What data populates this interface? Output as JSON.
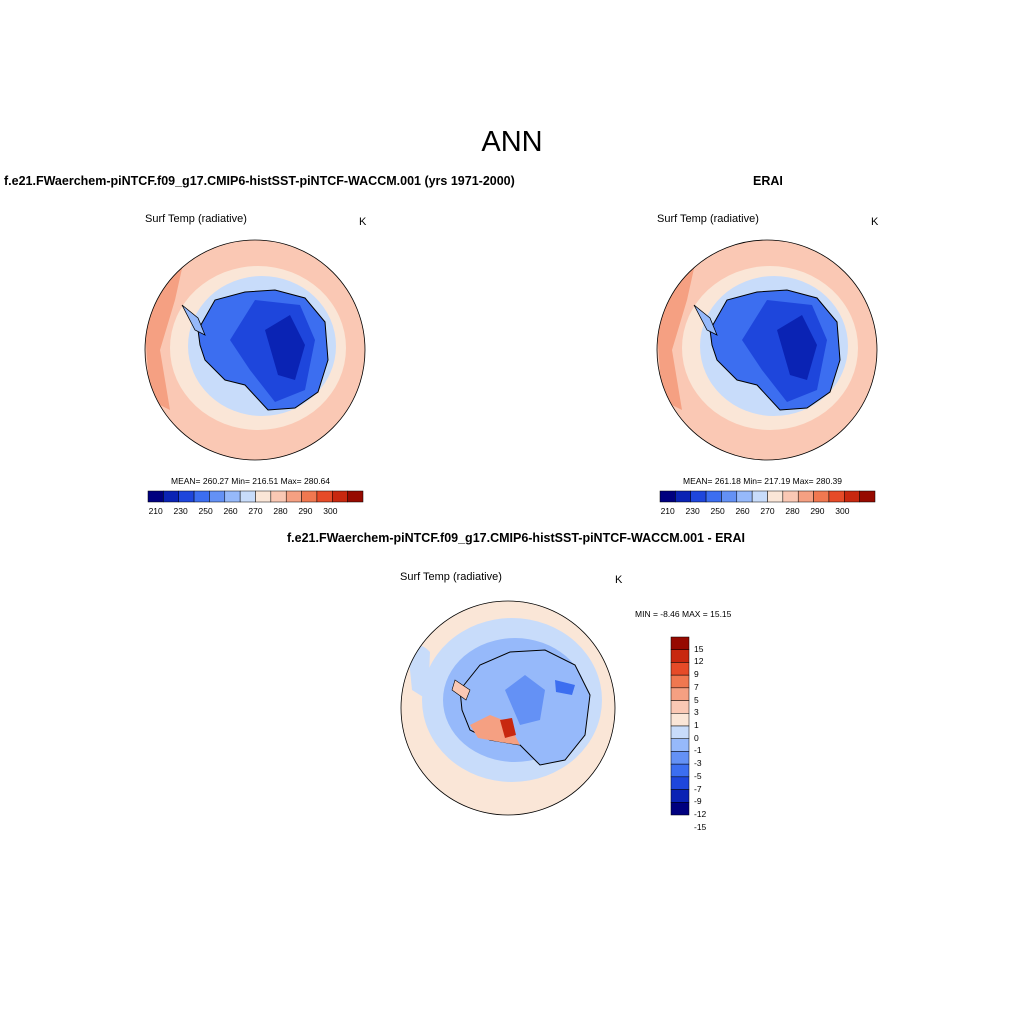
{
  "page_title": "ANN",
  "panels": [
    {
      "case_title": "f.e21.FWaerchem-piNTCF.f09_g17.CMIP6-histSST-piNTCF-WACCM.001 (yrs 1971-2000)",
      "variable": "Surf Temp (radiative)",
      "units": "K",
      "stats": "MEAN= 260.27  Min= 216.51  Max= 280.64",
      "colorbar_ticks": [
        "210",
        "230",
        "250",
        "260",
        "270",
        "280",
        "290",
        "300"
      ]
    },
    {
      "case_title": "ERAI",
      "variable": "Surf Temp (radiative)",
      "units": "K",
      "stats": "MEAN= 261.18  Min= 217.19  Max= 280.39",
      "colorbar_ticks": [
        "210",
        "230",
        "250",
        "260",
        "270",
        "280",
        "290",
        "300"
      ]
    },
    {
      "case_title": "f.e21.FWaerchem-piNTCF.f09_g17.CMIP6-histSST-piNTCF-WACCM.001 - ERAI",
      "variable": "Surf Temp (radiative)",
      "units": "K",
      "stats": "MIN =  -8.46 MAX =  15.15",
      "colorbar_ticks": [
        "15",
        "12",
        "9",
        "7",
        "5",
        "3",
        "1",
        "0",
        "-1",
        "-3",
        "-5",
        "-7",
        "-9",
        "-12",
        "-15"
      ]
    }
  ],
  "colors": {
    "temp_scale": [
      "#00007f",
      "#0a23b4",
      "#1e46dc",
      "#3c6ef0",
      "#6491f5",
      "#96b9fa",
      "#c8dcfa",
      "#fae6d7",
      "#fac8b4",
      "#f5a082",
      "#f07850",
      "#e64b28",
      "#c8280f",
      "#960a00"
    ],
    "diff_scale": [
      "#00007f",
      "#0a23b4",
      "#1e46dc",
      "#3c6ef0",
      "#6491f5",
      "#96b9fa",
      "#c8dcfa",
      "#fae6d7",
      "#fac8b4",
      "#f5a082",
      "#f07850",
      "#e64b28",
      "#c8280f",
      "#960a00"
    ]
  }
}
